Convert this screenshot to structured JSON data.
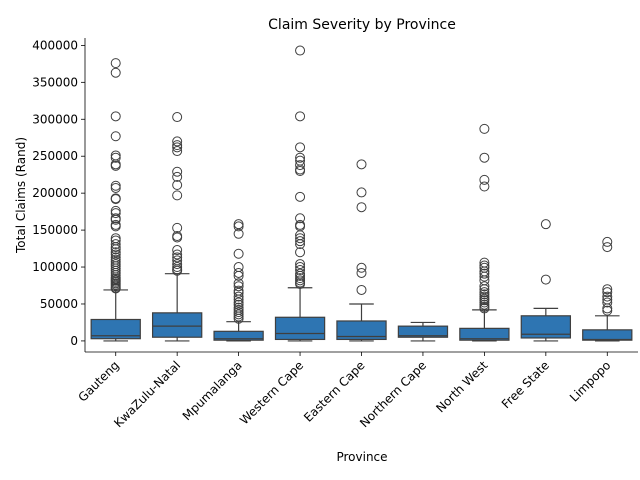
{
  "chart_data": {
    "type": "box",
    "title": "Claim Severity by Province",
    "xlabel": "Province",
    "ylabel": "Total Claims (Rand)",
    "ylim": [
      -15000,
      410000
    ],
    "yticks": [
      0,
      50000,
      100000,
      150000,
      200000,
      250000,
      300000,
      350000,
      400000
    ],
    "grid": false,
    "box_color": "#2e75b2",
    "line_color": "#3f3f3f",
    "categories": [
      "Gauteng",
      "KwaZulu-Natal",
      "Mpumalanga",
      "Western Cape",
      "Eastern Cape",
      "Northern Cape",
      "North West",
      "Free State",
      "Limpopo"
    ],
    "boxes": [
      {
        "name": "Gauteng",
        "whislo": 0,
        "q1": 3000,
        "med": 7000,
        "q3": 29000,
        "whishi": 69000,
        "fliers": [
          376000,
          363000,
          304000,
          277000,
          251000,
          248000,
          239000,
          237000,
          210000,
          207000,
          193000,
          192000,
          176000,
          173000,
          166000,
          164000,
          157000,
          155000,
          139000,
          136000,
          131000,
          127000,
          124000,
          120000,
          117000,
          113000,
          110000,
          107000,
          104000,
          101000,
          98000,
          95000,
          92000,
          89000,
          86000,
          84000,
          82000,
          80000,
          78000,
          76000,
          74000,
          72000,
          71000
        ]
      },
      {
        "name": "KwaZulu-Natal",
        "whislo": 0,
        "q1": 5000,
        "med": 20000,
        "q3": 38000,
        "whishi": 91000,
        "fliers": [
          303000,
          270000,
          265000,
          262000,
          257000,
          229000,
          222000,
          211000,
          197000,
          153000,
          142000,
          140000,
          123000,
          117000,
          113000,
          109000,
          104000,
          100000,
          97000,
          95000
        ]
      },
      {
        "name": "Mpumalanga",
        "whislo": 0,
        "q1": 1000,
        "med": 3000,
        "q3": 13000,
        "whishi": 26000,
        "fliers": [
          158000,
          155000,
          145000,
          118000,
          100000,
          92000,
          88000,
          78000,
          74000,
          68000,
          65000,
          60000,
          56000,
          52000,
          49000,
          45000,
          42000,
          39000,
          36000,
          33000,
          30000
        ]
      },
      {
        "name": "Western Cape",
        "whislo": 0,
        "q1": 2000,
        "med": 10000,
        "q3": 32000,
        "whishi": 72000,
        "fliers": [
          393000,
          304000,
          262000,
          248000,
          244000,
          238000,
          232000,
          230000,
          195000,
          166000,
          157000,
          155000,
          143000,
          139000,
          135000,
          131000,
          120000,
          104000,
          100000,
          96000,
          91000,
          88000,
          85000,
          82000,
          79000,
          77000
        ]
      },
      {
        "name": "Eastern Cape",
        "whislo": 0,
        "q1": 2000,
        "med": 6000,
        "q3": 27000,
        "whishi": 50000,
        "fliers": [
          239000,
          201000,
          181000,
          99000,
          92000,
          69000
        ]
      },
      {
        "name": "Northern Cape",
        "whislo": 0,
        "q1": 5000,
        "med": 7000,
        "q3": 20000,
        "whishi": 25000,
        "fliers": []
      },
      {
        "name": "North West",
        "whislo": 0,
        "q1": 1000,
        "med": 3000,
        "q3": 17000,
        "whishi": 42000,
        "fliers": [
          287000,
          248000,
          218000,
          209000,
          106000,
          102000,
          99000,
          94000,
          91000,
          87000,
          82000,
          74000,
          70000,
          66000,
          63000,
          60000,
          57000,
          55000,
          52000,
          49000,
          46000,
          44000
        ]
      },
      {
        "name": "Free State",
        "whislo": 0,
        "q1": 4000,
        "med": 9000,
        "q3": 34000,
        "whishi": 44000,
        "fliers": [
          158000,
          83000
        ]
      },
      {
        "name": "Limpopo",
        "whislo": 0,
        "q1": 1000,
        "med": 2000,
        "q3": 15000,
        "whishi": 34000,
        "fliers": [
          134000,
          127000,
          70000,
          66000,
          60000,
          56000,
          52000,
          44000,
          41000
        ]
      }
    ]
  }
}
